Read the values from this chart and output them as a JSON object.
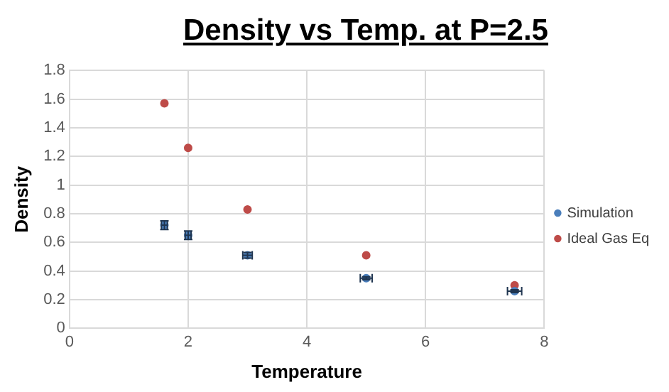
{
  "chart_data": {
    "type": "scatter",
    "title": "Density vs Temp. at P=2.5",
    "xlabel": "Temperature",
    "ylabel": "Density",
    "x": [
      1.6,
      2,
      3,
      5,
      7.5
    ],
    "series": [
      {
        "name": "Simulation",
        "color": "#4a7ebb",
        "values": [
          0.72,
          0.65,
          0.51,
          0.35,
          0.26
        ],
        "errors": [
          0.03,
          0.03,
          0.02,
          0.01,
          0.01
        ],
        "xerrors": [
          0.05,
          0.05,
          0.08,
          0.1,
          0.12
        ]
      },
      {
        "name": "Ideal Gas Eq",
        "color": "#be4b48",
        "values": [
          1.57,
          1.26,
          0.83,
          0.51,
          0.3
        ]
      }
    ],
    "xlim": [
      0,
      8
    ],
    "xticks": [
      0,
      2,
      4,
      6,
      8
    ],
    "ylim": [
      0,
      1.8
    ],
    "yticks": [
      0,
      0.2,
      0.4,
      0.6,
      0.8,
      1,
      1.2,
      1.4,
      1.6,
      1.8
    ],
    "grid": true,
    "legend": "right",
    "marker": "circle"
  }
}
